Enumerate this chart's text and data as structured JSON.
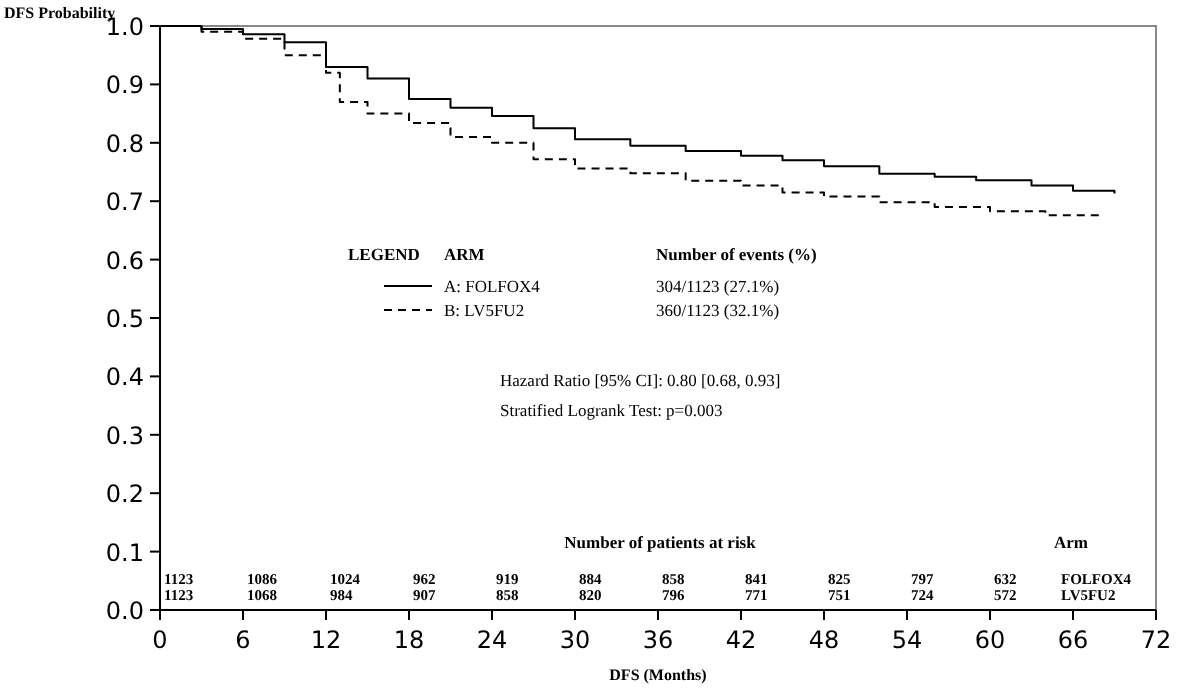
{
  "chart_data": {
    "type": "step",
    "xlabel": "DFS (Months)",
    "ylabel": "DFS Probability",
    "legend_title": "ARM",
    "legend": "left",
    "grid": false,
    "xlim": [
      0,
      72
    ],
    "xticks": [
      0,
      6,
      12,
      18,
      24,
      30,
      36,
      42,
      48,
      54,
      60,
      66,
      72
    ],
    "ylim": [
      0,
      1
    ],
    "yticks": [
      {
        "value": 0,
        "label": "0.0"
      },
      {
        "value": 0.1,
        "label": "0.1"
      },
      {
        "value": 0.2,
        "label": "0.2"
      },
      {
        "value": 0.3,
        "label": "0.3"
      },
      {
        "value": 0.4,
        "label": "0.4"
      },
      {
        "value": 0.5,
        "label": "0.5"
      },
      {
        "value": 0.6,
        "label": "0.6"
      },
      {
        "value": 0.7,
        "label": "0.7"
      },
      {
        "value": 0.8,
        "label": "0.8"
      },
      {
        "value": 0.9,
        "label": "0.9"
      },
      {
        "value": 1,
        "label": "1.0"
      }
    ],
    "series": [
      {
        "name": "A: FOLFOX4",
        "color": "#000000",
        "line_style": "solid",
        "x": [
          0,
          3,
          6,
          9,
          12,
          15,
          18,
          21,
          24,
          27,
          30,
          34,
          38,
          42,
          45,
          48,
          52,
          56,
          59,
          63,
          66,
          69
        ],
        "values": [
          1,
          0.995,
          0.986,
          0.972,
          0.93,
          0.91,
          0.875,
          0.86,
          0.846,
          0.825,
          0.806,
          0.795,
          0.786,
          0.778,
          0.77,
          0.76,
          0.747,
          0.742,
          0.736,
          0.727,
          0.718,
          0.713
        ]
      },
      {
        "name": "B: LV5FU2",
        "color": "#000000",
        "line_style": "dashed",
        "x": [
          0,
          3,
          6,
          9,
          12,
          13,
          15,
          18,
          21,
          24,
          27,
          30,
          34,
          38,
          42,
          45,
          48,
          52,
          56,
          60,
          64,
          68
        ],
        "values": [
          1,
          0.99,
          0.978,
          0.95,
          0.92,
          0.87,
          0.85,
          0.834,
          0.81,
          0.8,
          0.772,
          0.756,
          0.748,
          0.735,
          0.727,
          0.715,
          0.708,
          0.698,
          0.69,
          0.683,
          0.676,
          0.672
        ]
      }
    ],
    "annotations": [
      "LEGEND",
      "Number of events (%)",
      "304/1123  (27.1%)",
      "360/1123  (32.1%)",
      "Hazard Ratio [95% CI]: 0.80 [0.68, 0.93]",
      "Stratified Logrank Test:   p=0.003",
      "Number of patients at risk",
      "Arm",
      "1123",
      "1086",
      "1024",
      "962",
      "919",
      "884",
      "858",
      "841",
      "825",
      "797",
      "632",
      "FOLFOX4",
      "1123",
      "1068",
      "984",
      "907",
      "858",
      "820",
      "796",
      "771",
      "751",
      "724",
      "572",
      "LV5FU2"
    ]
  }
}
